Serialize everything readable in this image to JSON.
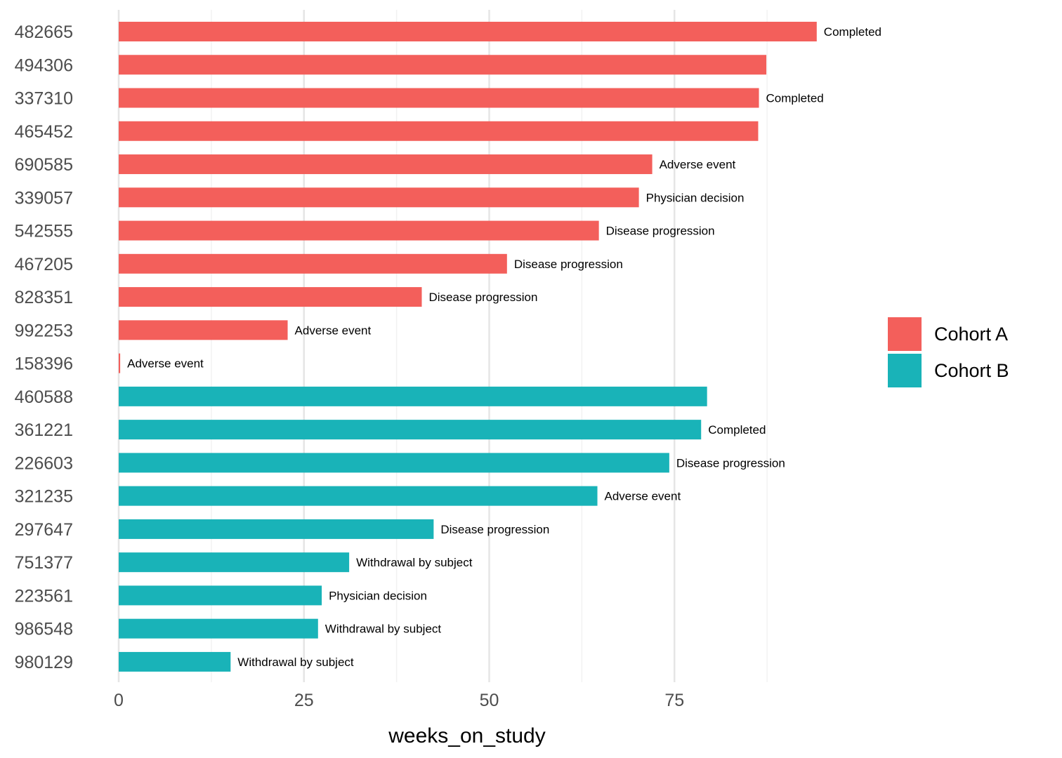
{
  "chart_data": {
    "type": "bar",
    "orientation": "horizontal",
    "xlabel": "weeks_on_study",
    "ylabel": "",
    "xlim": [
      0,
      100
    ],
    "x_ticks": [
      0,
      25,
      50,
      75
    ],
    "grid": true,
    "legend_position": "right",
    "colors": {
      "Cohort A": "#f35f5b",
      "Cohort B": "#19b3b8"
    },
    "series": [
      {
        "name": "Cohort A"
      },
      {
        "name": "Cohort B"
      }
    ],
    "bars": [
      {
        "id": "482665",
        "cohort": "Cohort A",
        "weeks": 94.2,
        "label": "Completed"
      },
      {
        "id": "494306",
        "cohort": "Cohort A",
        "weeks": 87.4,
        "label": ""
      },
      {
        "id": "337310",
        "cohort": "Cohort A",
        "weeks": 86.4,
        "label": "Completed"
      },
      {
        "id": "465452",
        "cohort": "Cohort A",
        "weeks": 86.3,
        "label": ""
      },
      {
        "id": "690585",
        "cohort": "Cohort A",
        "weeks": 72.0,
        "label": "Adverse event"
      },
      {
        "id": "339057",
        "cohort": "Cohort A",
        "weeks": 70.2,
        "label": "Physician decision"
      },
      {
        "id": "542555",
        "cohort": "Cohort A",
        "weeks": 64.8,
        "label": "Disease progression"
      },
      {
        "id": "467205",
        "cohort": "Cohort A",
        "weeks": 52.4,
        "label": "Disease progression"
      },
      {
        "id": "828351",
        "cohort": "Cohort A",
        "weeks": 40.9,
        "label": "Disease progression"
      },
      {
        "id": "992253",
        "cohort": "Cohort A",
        "weeks": 22.8,
        "label": "Adverse event"
      },
      {
        "id": "158396",
        "cohort": "Cohort A",
        "weeks": 0.2,
        "label": "Adverse event"
      },
      {
        "id": "460588",
        "cohort": "Cohort B",
        "weeks": 79.4,
        "label": ""
      },
      {
        "id": "361221",
        "cohort": "Cohort B",
        "weeks": 78.6,
        "label": "Completed"
      },
      {
        "id": "226603",
        "cohort": "Cohort B",
        "weeks": 74.3,
        "label": "Disease progression"
      },
      {
        "id": "321235",
        "cohort": "Cohort B",
        "weeks": 64.6,
        "label": "Adverse event"
      },
      {
        "id": "297647",
        "cohort": "Cohort B",
        "weeks": 42.5,
        "label": "Disease progression"
      },
      {
        "id": "751377",
        "cohort": "Cohort B",
        "weeks": 31.1,
        "label": "Withdrawal by subject"
      },
      {
        "id": "223561",
        "cohort": "Cohort B",
        "weeks": 27.4,
        "label": "Physician decision"
      },
      {
        "id": "986548",
        "cohort": "Cohort B",
        "weeks": 26.9,
        "label": "Withdrawal by subject"
      },
      {
        "id": "980129",
        "cohort": "Cohort B",
        "weeks": 15.1,
        "label": "Withdrawal by subject"
      }
    ]
  }
}
